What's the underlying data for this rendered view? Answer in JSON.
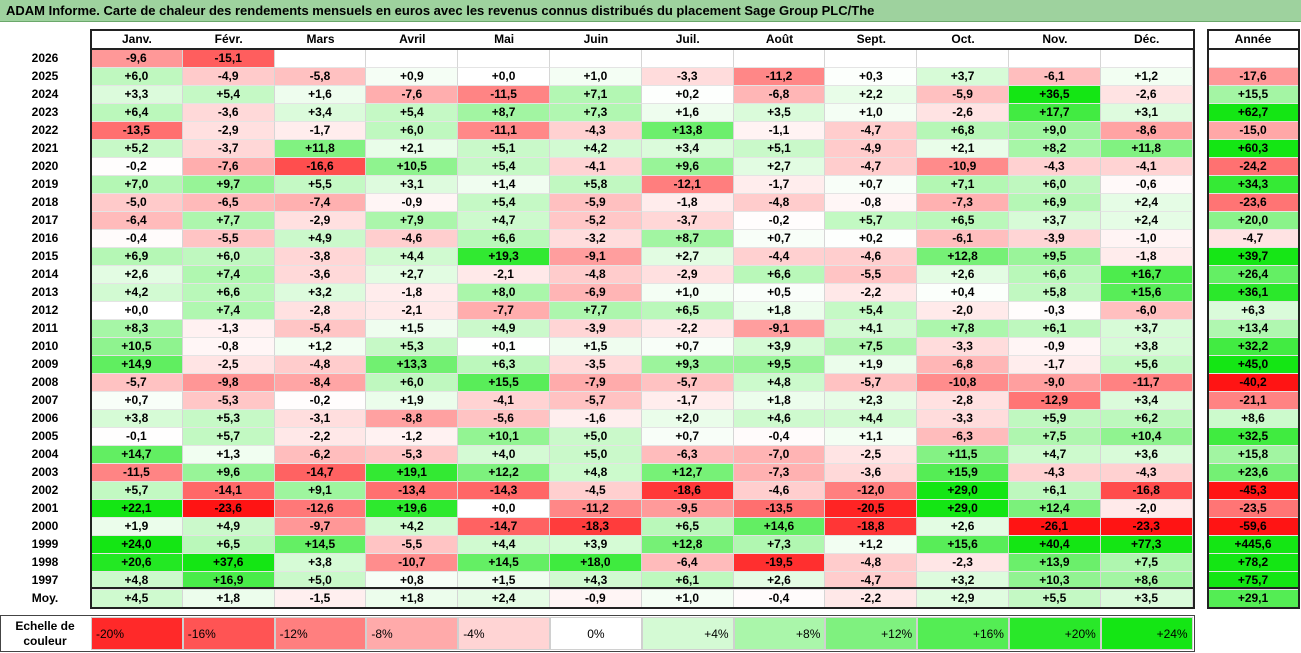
{
  "title": "ADAM Informe. Carte de chaleur des rendements mensuels en euros avec les revenus connus distribués du placement Sage Group PLC/The",
  "colors": {
    "title_bg": "#9ed29e",
    "negative_max": "#ff1a1a",
    "positive_max": "#1ee61e",
    "zero": "#ffffff"
  },
  "chart_data": {
    "type": "heatmap",
    "title": "ADAM Informe. Carte de chaleur des rendements mensuels en euros avec les revenus connus distribués du placement Sage Group PLC/The",
    "columns": [
      "Janv.",
      "Févr.",
      "Mars",
      "Avril",
      "Mai",
      "Juin",
      "Juil.",
      "Août",
      "Sept.",
      "Oct.",
      "Nov.",
      "Déc."
    ],
    "year_column": "Année",
    "rows": [
      {
        "label": "2026",
        "values": [
          "-9,6",
          "-15,1",
          "",
          "",
          "",
          "",
          "",
          "",
          "",
          "",
          "",
          ""
        ],
        "year": ""
      },
      {
        "label": "2025",
        "values": [
          "+6,0",
          "-4,9",
          "-5,8",
          "+0,9",
          "+0,0",
          "+1,0",
          "-3,3",
          "-11,2",
          "+0,3",
          "+3,7",
          "-6,1",
          "+1,2"
        ],
        "year": "-17,6"
      },
      {
        "label": "2024",
        "values": [
          "+3,3",
          "+5,4",
          "+1,6",
          "-7,6",
          "-11,5",
          "+7,1",
          "+0,2",
          "-6,8",
          "+2,2",
          "-5,9",
          "+36,5",
          "-2,6"
        ],
        "year": "+15,5"
      },
      {
        "label": "2023",
        "values": [
          "+6,4",
          "-3,6",
          "+3,4",
          "+5,4",
          "+8,7",
          "+7,3",
          "+1,6",
          "+3,5",
          "+1,0",
          "-2,6",
          "+17,7",
          "+3,1"
        ],
        "year": "+62,7"
      },
      {
        "label": "2022",
        "values": [
          "-13,5",
          "-2,9",
          "-1,7",
          "+6,0",
          "-11,1",
          "-4,3",
          "+13,8",
          "-1,1",
          "-4,7",
          "+6,8",
          "+9,0",
          "-8,6"
        ],
        "year": "-15,0"
      },
      {
        "label": "2021",
        "values": [
          "+5,2",
          "-3,7",
          "+11,8",
          "+2,1",
          "+5,1",
          "+4,2",
          "+3,4",
          "+5,1",
          "-4,9",
          "+2,1",
          "+8,2",
          "+11,8"
        ],
        "year": "+60,3"
      },
      {
        "label": "2020",
        "values": [
          "-0,2",
          "-7,6",
          "-16,6",
          "+10,5",
          "+5,4",
          "-4,1",
          "+9,6",
          "+2,7",
          "-4,7",
          "-10,9",
          "-4,3",
          "-4,1"
        ],
        "year": "-24,2"
      },
      {
        "label": "2019",
        "values": [
          "+7,0",
          "+9,7",
          "+5,5",
          "+3,1",
          "+1,4",
          "+5,8",
          "-12,1",
          "-1,7",
          "+0,7",
          "+7,1",
          "+6,0",
          "-0,6"
        ],
        "year": "+34,3"
      },
      {
        "label": "2018",
        "values": [
          "-5,0",
          "-6,5",
          "-7,4",
          "-0,9",
          "+5,4",
          "-5,9",
          "-1,8",
          "-4,8",
          "-0,8",
          "-7,3",
          "+6,9",
          "+2,4"
        ],
        "year": "-23,6"
      },
      {
        "label": "2017",
        "values": [
          "-6,4",
          "+7,7",
          "-2,9",
          "+7,9",
          "+4,7",
          "-5,2",
          "-3,7",
          "-0,2",
          "+5,7",
          "+6,5",
          "+3,7",
          "+2,4"
        ],
        "year": "+20,0"
      },
      {
        "label": "2016",
        "values": [
          "-0,4",
          "-5,5",
          "+4,9",
          "-4,6",
          "+6,6",
          "-3,2",
          "+8,7",
          "+0,7",
          "+0,2",
          "-6,1",
          "-3,9",
          "-1,0"
        ],
        "year": "-4,7"
      },
      {
        "label": "2015",
        "values": [
          "+6,9",
          "+6,0",
          "-3,8",
          "+4,4",
          "+19,3",
          "-9,1",
          "+2,7",
          "-4,4",
          "-4,6",
          "+12,8",
          "+9,5",
          "-1,8"
        ],
        "year": "+39,7"
      },
      {
        "label": "2014",
        "values": [
          "+2,6",
          "+7,4",
          "-3,6",
          "+2,7",
          "-2,1",
          "-4,8",
          "-2,9",
          "+6,6",
          "-5,5",
          "+2,6",
          "+6,6",
          "+16,7"
        ],
        "year": "+26,4"
      },
      {
        "label": "2013",
        "values": [
          "+4,2",
          "+6,6",
          "+3,2",
          "-1,8",
          "+8,0",
          "-6,9",
          "+1,0",
          "+0,5",
          "-2,2",
          "+0,4",
          "+5,8",
          "+15,6"
        ],
        "year": "+36,1"
      },
      {
        "label": "2012",
        "values": [
          "+0,0",
          "+7,4",
          "-2,8",
          "-2,1",
          "-7,7",
          "+7,7",
          "+6,5",
          "+1,8",
          "+5,4",
          "-2,0",
          "-0,3",
          "-6,0"
        ],
        "year": "+6,3"
      },
      {
        "label": "2011",
        "values": [
          "+8,3",
          "-1,3",
          "-5,4",
          "+1,5",
          "+4,9",
          "-3,9",
          "-2,2",
          "-9,1",
          "+4,1",
          "+7,8",
          "+6,1",
          "+3,7"
        ],
        "year": "+13,4"
      },
      {
        "label": "2010",
        "values": [
          "+10,5",
          "-0,8",
          "+1,2",
          "+5,3",
          "+0,1",
          "+1,5",
          "+0,7",
          "+3,9",
          "+7,5",
          "-3,3",
          "-0,9",
          "+3,8"
        ],
        "year": "+32,2"
      },
      {
        "label": "2009",
        "values": [
          "+14,9",
          "-2,5",
          "-4,8",
          "+13,3",
          "+6,3",
          "-3,5",
          "+9,3",
          "+9,5",
          "+1,9",
          "-6,8",
          "-1,7",
          "+5,6"
        ],
        "year": "+45,0"
      },
      {
        "label": "2008",
        "values": [
          "-5,7",
          "-9,8",
          "-8,4",
          "+6,0",
          "+15,5",
          "-7,9",
          "-5,7",
          "+4,8",
          "-5,7",
          "-10,8",
          "-9,0",
          "-11,7"
        ],
        "year": "-40,2"
      },
      {
        "label": "2007",
        "values": [
          "+0,7",
          "-5,3",
          "-0,2",
          "+1,9",
          "-4,1",
          "-5,7",
          "-1,7",
          "+1,8",
          "+2,3",
          "-2,8",
          "-12,9",
          "+3,4"
        ],
        "year": "-21,1"
      },
      {
        "label": "2006",
        "values": [
          "+3,8",
          "+5,3",
          "-3,1",
          "-8,8",
          "-5,6",
          "-1,6",
          "+2,0",
          "+4,6",
          "+4,4",
          "-3,3",
          "+5,9",
          "+6,2"
        ],
        "year": "+8,6"
      },
      {
        "label": "2005",
        "values": [
          "-0,1",
          "+5,7",
          "-2,2",
          "-1,2",
          "+10,1",
          "+5,0",
          "+0,7",
          "-0,4",
          "+1,1",
          "-6,3",
          "+7,5",
          "+10,4"
        ],
        "year": "+32,5"
      },
      {
        "label": "2004",
        "values": [
          "+14,7",
          "+1,3",
          "-6,2",
          "-5,3",
          "+4,0",
          "+5,0",
          "-6,3",
          "-7,0",
          "-2,5",
          "+11,5",
          "+4,7",
          "+3,6"
        ],
        "year": "+15,8"
      },
      {
        "label": "2003",
        "values": [
          "-11,5",
          "+9,6",
          "-14,7",
          "+19,1",
          "+12,2",
          "+4,8",
          "+12,7",
          "-7,3",
          "-3,6",
          "+15,9",
          "-4,3",
          "-4,3"
        ],
        "year": "+23,6"
      },
      {
        "label": "2002",
        "values": [
          "+5,7",
          "-14,1",
          "+9,1",
          "-13,4",
          "-14,3",
          "-4,5",
          "-18,6",
          "-4,6",
          "-12,0",
          "+29,0",
          "+6,1",
          "-16,8"
        ],
        "year": "-45,3"
      },
      {
        "label": "2001",
        "values": [
          "+22,1",
          "-23,6",
          "-12,6",
          "+19,6",
          "+0,0",
          "-11,2",
          "-9,5",
          "-13,5",
          "-20,5",
          "+29,0",
          "+12,4",
          "-2,0"
        ],
        "year": "-23,5"
      },
      {
        "label": "2000",
        "values": [
          "+1,9",
          "+4,9",
          "-9,7",
          "+4,2",
          "-14,7",
          "-18,3",
          "+6,5",
          "+14,6",
          "-18,8",
          "+2,6",
          "-26,1",
          "-23,3"
        ],
        "year": "-59,6"
      },
      {
        "label": "1999",
        "values": [
          "+24,0",
          "+6,5",
          "+14,5",
          "-5,5",
          "+4,4",
          "+3,9",
          "+12,8",
          "+7,3",
          "+1,2",
          "+15,6",
          "+40,4",
          "+77,3"
        ],
        "year": "+445,6"
      },
      {
        "label": "1998",
        "values": [
          "+20,6",
          "+37,6",
          "+3,8",
          "-10,7",
          "+14,5",
          "+18,0",
          "-6,4",
          "-19,5",
          "-4,8",
          "-2,3",
          "+13,9",
          "+7,5"
        ],
        "year": "+78,2"
      },
      {
        "label": "1997",
        "values": [
          "+4,8",
          "+16,9",
          "+5,0",
          "+0,8",
          "+1,5",
          "+4,3",
          "+6,1",
          "+2,6",
          "-4,7",
          "+3,2",
          "+10,3",
          "+8,6"
        ],
        "year": "+75,7"
      }
    ],
    "average": {
      "label": "Moy.",
      "values": [
        "+4,5",
        "+1,8",
        "-1,5",
        "+1,8",
        "+2,4",
        "-0,9",
        "+1,0",
        "-0,4",
        "-2,2",
        "+2,9",
        "+5,5",
        "+3,5"
      ],
      "year": "+29,1"
    },
    "legend": {
      "label": "Echelle de couleur",
      "steps": [
        "-20%",
        "-16%",
        "-12%",
        "-8%",
        "-4%",
        "0%",
        "+4%",
        "+8%",
        "+12%",
        "+16%",
        "+20%",
        "+24%"
      ]
    }
  }
}
